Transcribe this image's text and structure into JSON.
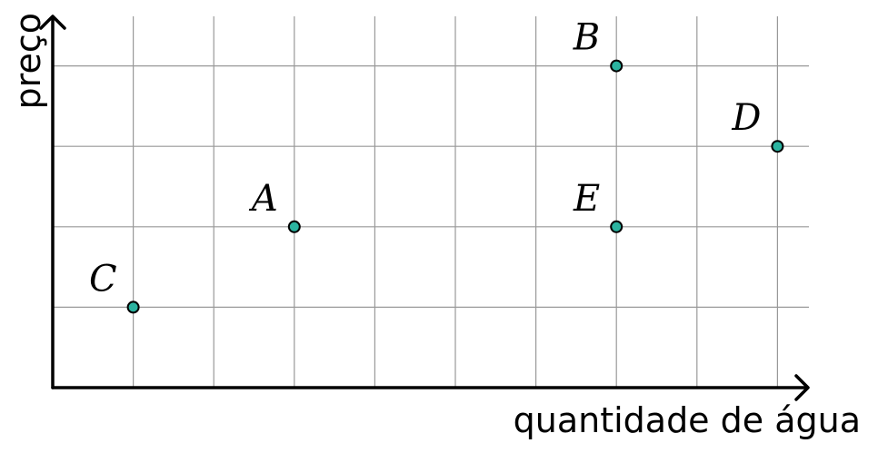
{
  "chart_data": {
    "type": "scatter",
    "title": "",
    "xlabel": "quantidade de água",
    "ylabel": "preço",
    "xlim": [
      0,
      9.4
    ],
    "ylim": [
      0,
      4.6
    ],
    "grid": true,
    "show_tick_labels": false,
    "x_gridlines": [
      1,
      2,
      3,
      4,
      5,
      6,
      7,
      8,
      9
    ],
    "y_gridlines": [
      1,
      2,
      3,
      4
    ],
    "points": [
      {
        "label": "A",
        "x": 3,
        "y": 2
      },
      {
        "label": "B",
        "x": 7,
        "y": 4
      },
      {
        "label": "C",
        "x": 1,
        "y": 1
      },
      {
        "label": "D",
        "x": 9,
        "y": 3
      },
      {
        "label": "E",
        "x": 7,
        "y": 2
      }
    ],
    "colors": {
      "point_fill": "#2bb3a0",
      "point_stroke": "#000000",
      "grid": "#999999",
      "axis": "#000000"
    }
  }
}
